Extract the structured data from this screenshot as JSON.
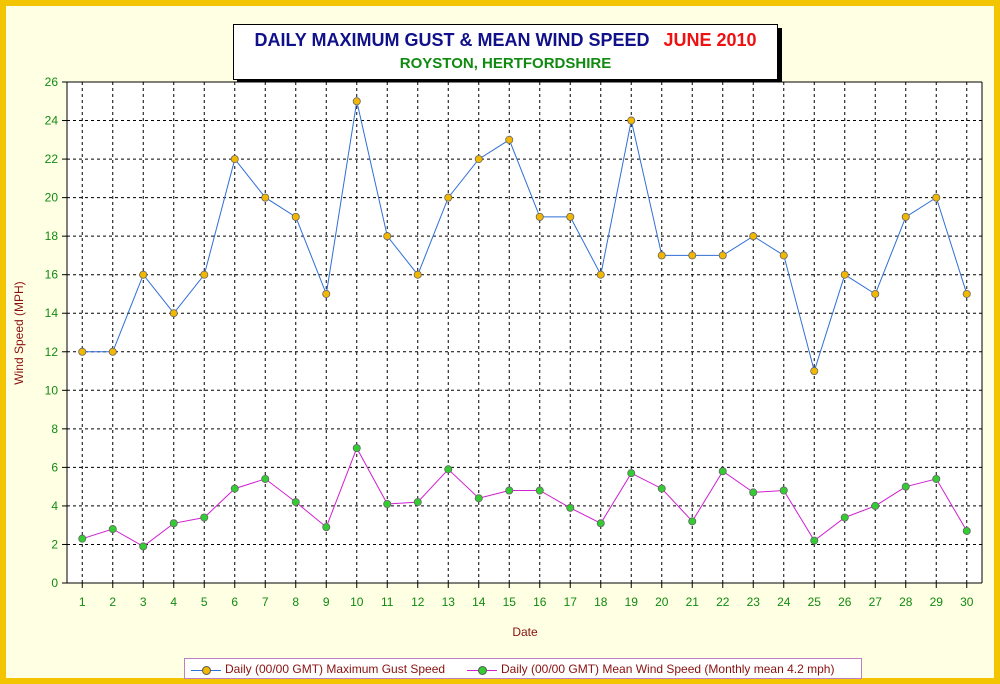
{
  "chart_data": {
    "type": "line",
    "title": "DAILY MAXIMUM GUST & MEAN WIND SPEED",
    "title_period": "JUNE 2010",
    "subtitle": "ROYSTON, HERTFORDSHIRE",
    "xlabel": "Date",
    "ylabel": "Wind Speed (MPH)",
    "x": [
      1,
      2,
      3,
      4,
      5,
      6,
      7,
      8,
      9,
      10,
      11,
      12,
      13,
      14,
      15,
      16,
      17,
      18,
      19,
      20,
      21,
      22,
      23,
      24,
      25,
      26,
      27,
      28,
      29,
      30
    ],
    "ylim": [
      0,
      26
    ],
    "yticks": [
      0,
      2,
      4,
      6,
      8,
      10,
      12,
      14,
      16,
      18,
      20,
      22,
      24,
      26
    ],
    "grid": true,
    "legend_position": "bottom",
    "series": [
      {
        "name": "Daily (00/00 GMT) Maximum Gust Speed",
        "line_color": "#2f6fd6",
        "marker_color": "#f2b700",
        "values": [
          12,
          12,
          16,
          14,
          16,
          22,
          20,
          19,
          15,
          25,
          18,
          16,
          20,
          22,
          23,
          19,
          19,
          16,
          24,
          17,
          17,
          17,
          18,
          17,
          11,
          16,
          15,
          19,
          20,
          15
        ]
      },
      {
        "name": "Daily (00/00 GMT) Mean Wind Speed (Monthly mean 4.2 mph)",
        "line_color": "#d020d0",
        "marker_color": "#33cc33",
        "values": [
          2.3,
          2.8,
          1.9,
          3.1,
          3.4,
          4.9,
          5.4,
          4.2,
          2.9,
          7.0,
          4.1,
          4.2,
          5.9,
          4.4,
          4.8,
          4.8,
          3.9,
          3.1,
          5.7,
          4.9,
          3.2,
          5.8,
          4.7,
          4.8,
          2.2,
          3.4,
          4.0,
          5.0,
          5.4,
          2.7
        ]
      }
    ]
  }
}
